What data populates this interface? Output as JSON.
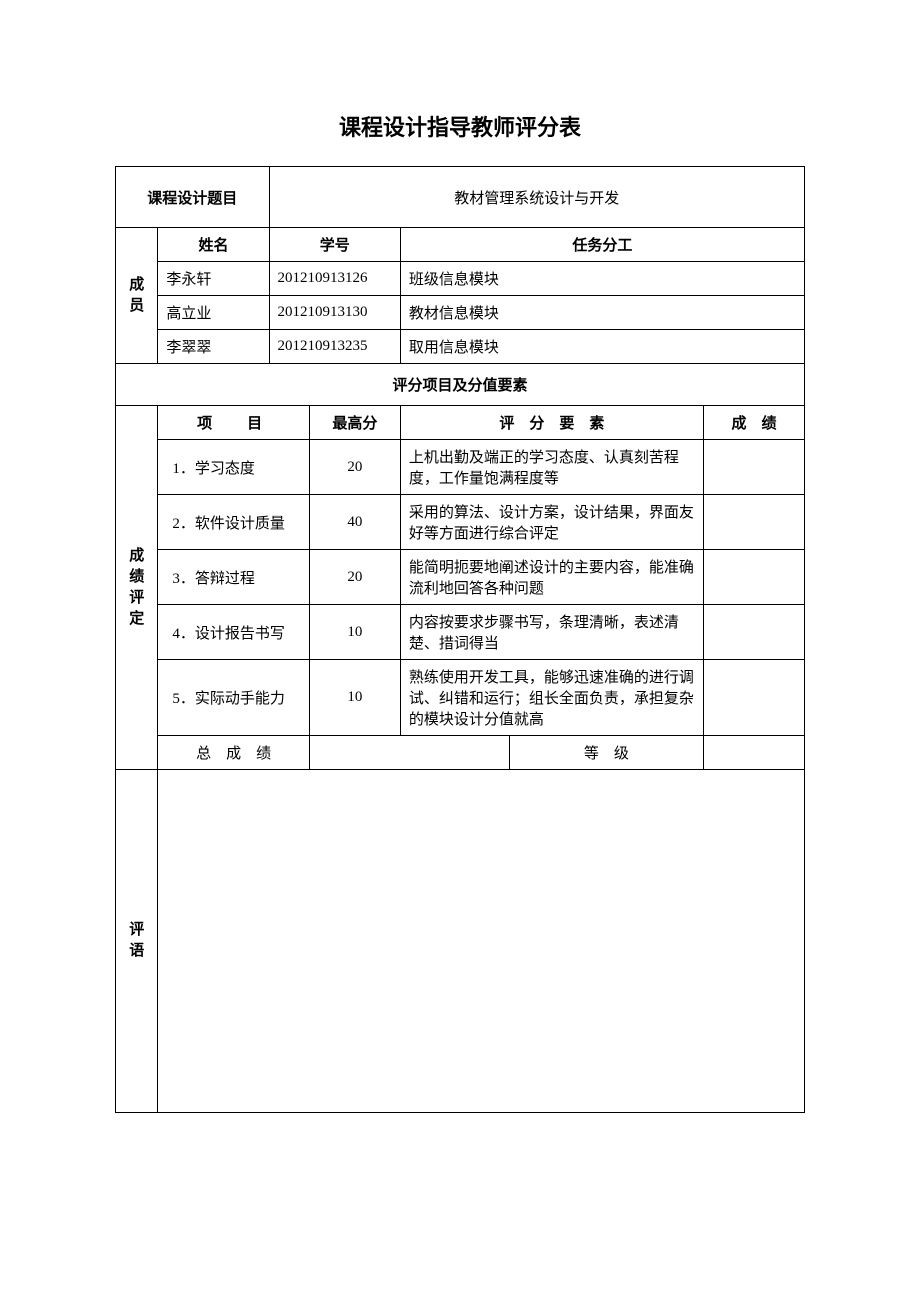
{
  "title": "课程设计指导教师评分表",
  "topic_label": "课程设计题目",
  "topic_value": "教材管理系统设计与开发",
  "members_label": "成员",
  "member_headers": {
    "name": "姓名",
    "id": "学号",
    "task": "任务分工"
  },
  "members": [
    {
      "name": "李永轩",
      "id": "201210913126",
      "task": "班级信息模块"
    },
    {
      "name": "高立业",
      "id": "201210913130",
      "task": "教材信息模块"
    },
    {
      "name": "李翠翠",
      "id": "201210913235",
      "task": "取用信息模块"
    }
  ],
  "section_label": "评分项目及分值要素",
  "grade_label": "成绩评定",
  "score_headers": {
    "item": "项　目",
    "max": "最高分",
    "criteria": "评　分　要　素",
    "score": "成　绩"
  },
  "criteria": [
    {
      "item": "1．学习态度",
      "max": "20",
      "desc": "上机出勤及端正的学习态度、认真刻苦程度，工作量饱满程度等"
    },
    {
      "item": "2．软件设计质量",
      "max": "40",
      "desc": "采用的算法、设计方案，设计结果，界面友好等方面进行综合评定"
    },
    {
      "item": "3．答辩过程",
      "max": "20",
      "desc": "能简明扼要地阐述设计的主要内容，能准确流利地回答各种问题"
    },
    {
      "item": "4．设计报告书写",
      "max": "10",
      "desc": "内容按要求步骤书写，条理清晰，表述清楚、措词得当"
    },
    {
      "item": "5．实际动手能力",
      "max": "10",
      "desc": "熟练使用开发工具，能够迅速准确的进行调试、纠错和运行；组长全面负责，承担复杂的模块设计分值就高"
    }
  ],
  "total_label": "总　成　绩",
  "level_label": "等　级",
  "comments_label": "评语"
}
